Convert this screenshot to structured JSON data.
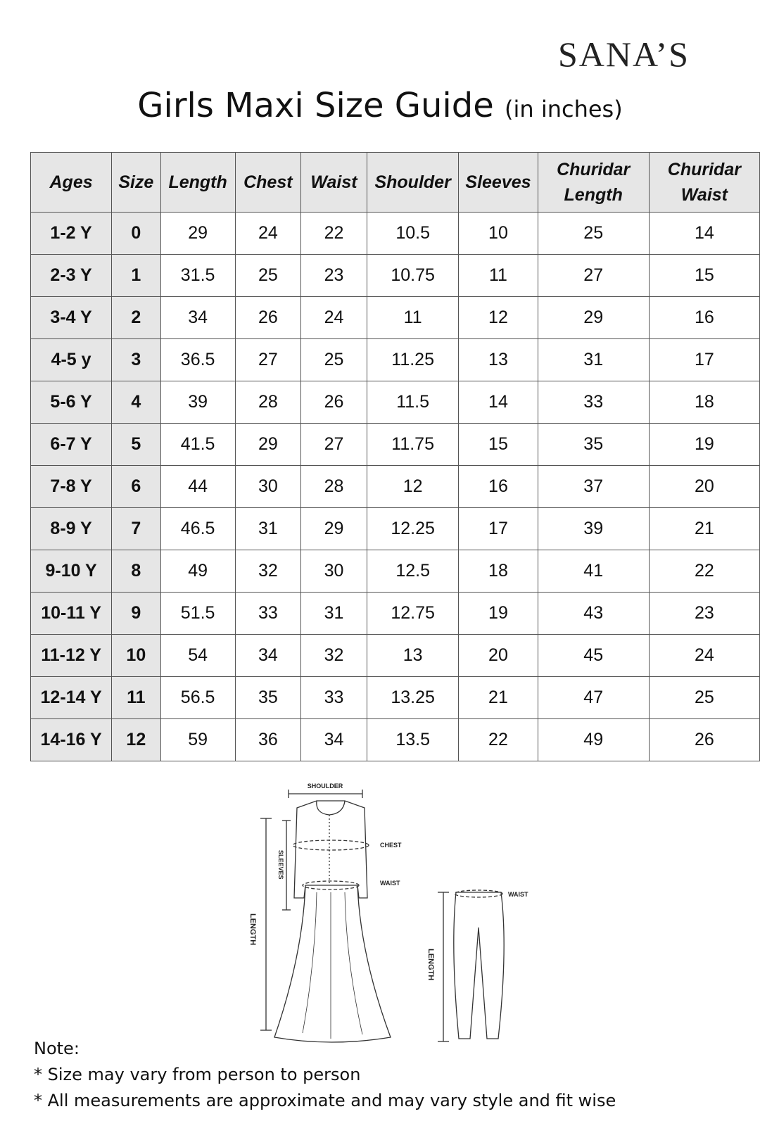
{
  "brand": "SANA’S",
  "header": {
    "title": "Girls Maxi Size Guide",
    "subtitle": "(in inches)"
  },
  "table": {
    "headers": [
      "Ages",
      "Size",
      "Length",
      "Chest",
      "Waist",
      "Shoulder",
      "Sleeves",
      "Churidar Length",
      "Churidar Waist"
    ],
    "rows": [
      [
        "1-2 Y",
        0,
        29,
        24,
        22,
        10.5,
        10,
        25,
        14
      ],
      [
        "2-3 Y",
        1,
        31.5,
        25,
        23,
        10.75,
        11,
        27,
        15
      ],
      [
        "3-4 Y",
        2,
        34,
        26,
        24,
        11,
        12,
        29,
        16
      ],
      [
        "4-5 y",
        3,
        36.5,
        27,
        25,
        11.25,
        13,
        31,
        17
      ],
      [
        "5-6 Y",
        4,
        39,
        28,
        26,
        11.5,
        14,
        33,
        18
      ],
      [
        "6-7 Y",
        5,
        41.5,
        29,
        27,
        11.75,
        15,
        35,
        19
      ],
      [
        "7-8 Y",
        6,
        44,
        30,
        28,
        12,
        16,
        37,
        20
      ],
      [
        "8-9 Y",
        7,
        46.5,
        31,
        29,
        12.25,
        17,
        39,
        21
      ],
      [
        "9-10 Y",
        8,
        49,
        32,
        30,
        12.5,
        18,
        41,
        22
      ],
      [
        "10-11 Y",
        9,
        51.5,
        33,
        31,
        12.75,
        19,
        43,
        23
      ],
      [
        "11-12 Y",
        10,
        54,
        34,
        32,
        13,
        20,
        45,
        24
      ],
      [
        "12-14 Y",
        11,
        56.5,
        35,
        33,
        13.25,
        21,
        47,
        25
      ],
      [
        "14-16 Y",
        12,
        59,
        36,
        34,
        13.5,
        22,
        49,
        26
      ]
    ]
  },
  "diagram": {
    "shoulder": "SHOULDER",
    "chest": "CHEST",
    "waist": "WAIST",
    "sleeves": "SLEEVES",
    "length": "LENGTH",
    "pants_waist": "WAIST",
    "pants_length": "LENGTH"
  },
  "notes": [
    "Note:",
    "* Size may vary from person to person",
    "* All measurements are approximate and may vary style and fit wise"
  ]
}
